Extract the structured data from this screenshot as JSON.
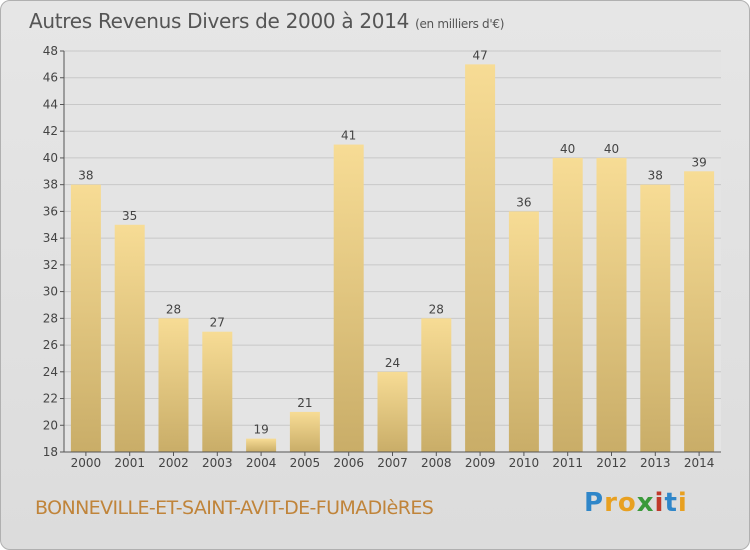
{
  "title": "Autres Revenus Divers de 2000 à 2014",
  "subtitle": "(en milliers d'€)",
  "commune": "BONNEVILLE-ET-SAINT-AVIT-DE-FUMADIèRES",
  "logo": {
    "letters": [
      "P",
      "r",
      "o",
      "x",
      "i",
      "t",
      "i"
    ],
    "colors": [
      "#2f86c9",
      "#e8a020",
      "#e8a020",
      "#3a9a3a",
      "#c0392b",
      "#2f86c9",
      "#e8a020"
    ]
  },
  "colors": {
    "bar_light": "#f7dc95",
    "bar_dark": "#c9ad68",
    "axis": "#555555",
    "grid": "#c8c8c8"
  },
  "chart_data": {
    "type": "bar",
    "categories": [
      "2000",
      "2001",
      "2002",
      "2003",
      "2004",
      "2005",
      "2006",
      "2007",
      "2008",
      "2009",
      "2010",
      "2011",
      "2012",
      "2013",
      "2014"
    ],
    "values": [
      38,
      35,
      28,
      27,
      19,
      21,
      41,
      24,
      28,
      47,
      36,
      40,
      40,
      38,
      39
    ],
    "ylim": [
      18,
      48
    ],
    "yticks": [
      18,
      20,
      22,
      24,
      26,
      28,
      30,
      32,
      34,
      36,
      38,
      40,
      42,
      44,
      46,
      48
    ],
    "grid": "horizontal"
  }
}
